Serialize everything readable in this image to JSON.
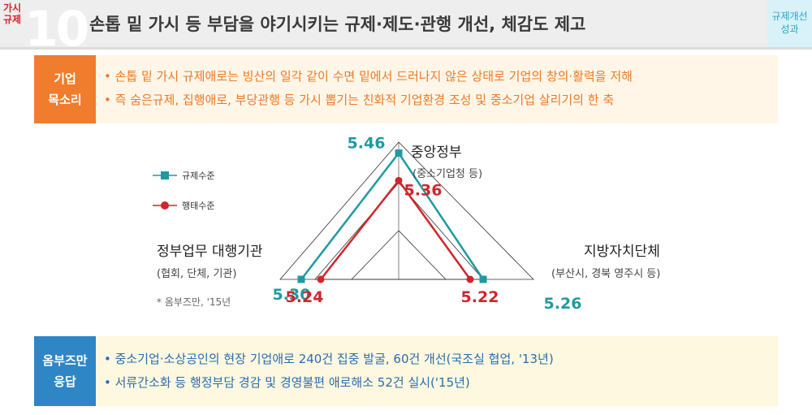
{
  "header": {
    "section_tag": "가시\n규제",
    "section_number": "10",
    "title": "손톱 밑 가시 등 부담을 야기시키는 규제·제도·관행 개선, 체감도 제고",
    "side_label_line1": "규제개선",
    "side_label_line2": "성과"
  },
  "voice": {
    "label_line1": "기업",
    "label_line2": "목소리",
    "items": [
      "손톱 밑 가시 규제애로는 빙산의 일각 같이 수면 밑에서 드러나지 않은 상태로 기업의 창의·활력을 저해",
      "즉 숨은규제, 집행애로, 부당관행 등 가시 뽑기는 친화적 기업환경 조성 및 중소기업 살리기의 한 축"
    ]
  },
  "chart_data": {
    "type": "radar",
    "legend": [
      {
        "name": "규제수준",
        "color": "#1f9aa0",
        "marker": "square"
      },
      {
        "name": "행태수준",
        "color": "#d0252c",
        "marker": "circle"
      }
    ],
    "categories": [
      {
        "name": "중앙정부",
        "sub": "(중소기업청 등)"
      },
      {
        "name": "지방자치단체",
        "sub": "(부산시, 경북 영주시 등)"
      },
      {
        "name": "정부업무 대행기관",
        "sub": "(협회, 단체, 기관)"
      }
    ],
    "series": [
      {
        "name": "규제수준",
        "values": [
          5.46,
          5.26,
          5.3
        ]
      },
      {
        "name": "행태수준",
        "values": [
          5.36,
          5.22,
          5.24
        ]
      }
    ],
    "value_labels": {
      "규제수준": [
        "5.46",
        "5.26",
        "5.30"
      ],
      "행태수준": [
        "5.36",
        "5.22",
        "5.24"
      ]
    },
    "note": "* 옴부즈만, '15년"
  },
  "response": {
    "label_line1": "옴부즈만",
    "label_line2": "응답",
    "items": [
      "중소기업·소상공인의 현장 기업애로 240건 집중 발굴, 60건 개선(국조실 협업, '13년)",
      "서류간소화 등 행정부담 경감 및 경영불편 애로해소 52건 실시('15년)"
    ]
  },
  "colors": {
    "accent_orange": "#f07d2d",
    "accent_blue": "#2e86c5",
    "series_teal": "#1f9aa0",
    "series_red": "#d0252c"
  }
}
